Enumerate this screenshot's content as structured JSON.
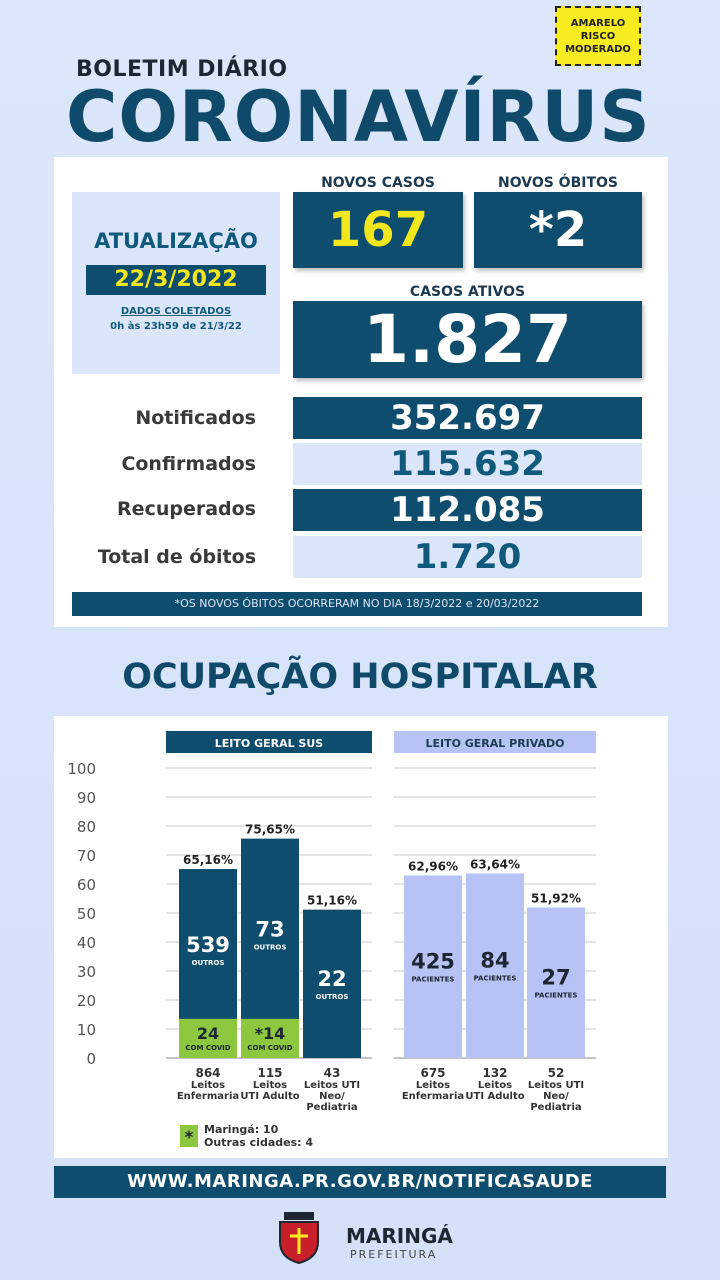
{
  "risk": {
    "line1": "AMARELO",
    "line2": "RISCO",
    "line3": "MODERADO",
    "color": "#f6ec1f"
  },
  "header": {
    "boletim": "BOLETIM DIÁRIO",
    "title": "CORONAVÍRUS"
  },
  "update": {
    "title": "ATUALIZAÇÃO",
    "date": "22/3/2022",
    "note1": "DADOS COLETADOS",
    "note2": "0h às 23h59 de 21/3/22"
  },
  "kpis": {
    "novos_casos_label": "NOVOS CASOS",
    "novos_casos": "167",
    "novos_obitos_label": "NOVOS ÓBITOS",
    "novos_obitos": "*2",
    "casos_ativos_label": "CASOS ATIVOS",
    "casos_ativos": "1.827"
  },
  "stats": [
    {
      "label": "Notificados",
      "value": "352.697"
    },
    {
      "label": "Confirmados",
      "value": "115.632"
    },
    {
      "label": "Recuperados",
      "value": "112.085"
    },
    {
      "label": "Total de óbitos",
      "value": "1.720"
    }
  ],
  "footnote": "*OS NOVOS ÓBITOS OCORRERAM NO DIA 18/3/2022 e 20/03/2022",
  "section_title": "OCUPAÇÃO HOSPITALAR",
  "colors": {
    "dark": "#0f4d6e",
    "covid": "#8dc63f",
    "private": "#b7c3f5",
    "accent": "#f2e71c"
  },
  "chart_data": {
    "type": "bar",
    "y_ticks": [
      "100",
      "90",
      "80",
      "70",
      "60",
      "50",
      "40",
      "30",
      "20",
      "10",
      "0"
    ],
    "ylim": [
      0,
      100
    ],
    "grid": true,
    "groups": [
      {
        "name": "LEITO GERAL SUS",
        "bars": [
          {
            "pct": 65.16,
            "pct_label": "65,16%",
            "outros": "539",
            "outros_label": "OUTROS",
            "covid": "24",
            "covid_label": "COM COVID",
            "covid_pct": 13.5,
            "total": "864",
            "cat1": "Leitos",
            "cat2": "Enfermaria",
            "cat3": ""
          },
          {
            "pct": 75.65,
            "pct_label": "75,65%",
            "outros": "73",
            "outros_label": "OUTROS",
            "covid": "*14",
            "covid_label": "COM COVID",
            "covid_pct": 13.5,
            "total": "115",
            "cat1": "Leitos",
            "cat2": "UTI Adulto",
            "cat3": ""
          },
          {
            "pct": 51.16,
            "pct_label": "51,16%",
            "outros": "22",
            "outros_label": "OUTROS",
            "covid": "",
            "covid_label": "",
            "covid_pct": 0,
            "total": "43",
            "cat1": "Leitos UTI",
            "cat2": "Neo/",
            "cat3": "Pediatria"
          }
        ]
      },
      {
        "name": "LEITO GERAL PRIVADO",
        "bars": [
          {
            "pct": 62.96,
            "pct_label": "62,96%",
            "outros": "425",
            "outros_label": "PACIENTES",
            "covid": "",
            "covid_label": "",
            "covid_pct": 0,
            "total": "675",
            "cat1": "Leitos",
            "cat2": "Enfermaria",
            "cat3": ""
          },
          {
            "pct": 63.64,
            "pct_label": "63,64%",
            "outros": "84",
            "outros_label": "PACIENTES",
            "covid": "",
            "covid_label": "",
            "covid_pct": 0,
            "total": "132",
            "cat1": "Leitos",
            "cat2": "UTI Adulto",
            "cat3": ""
          },
          {
            "pct": 51.92,
            "pct_label": "51,92%",
            "outros": "27",
            "outros_label": "PACIENTES",
            "covid": "",
            "covid_label": "",
            "covid_pct": 0,
            "total": "52",
            "cat1": "Leitos UTI",
            "cat2": "Neo/",
            "cat3": "Pediatria"
          }
        ]
      }
    ],
    "legend": {
      "symbol": "*",
      "line1": "Maringá: 10",
      "line2": "Outras cidades: 4"
    }
  },
  "url": "WWW.MARINGA.PR.GOV.BR/NOTIFICASAUDE",
  "logo": {
    "name": "MARINGÁ",
    "sub": "PREFEITURA",
    "icon": "city-crest-icon"
  }
}
